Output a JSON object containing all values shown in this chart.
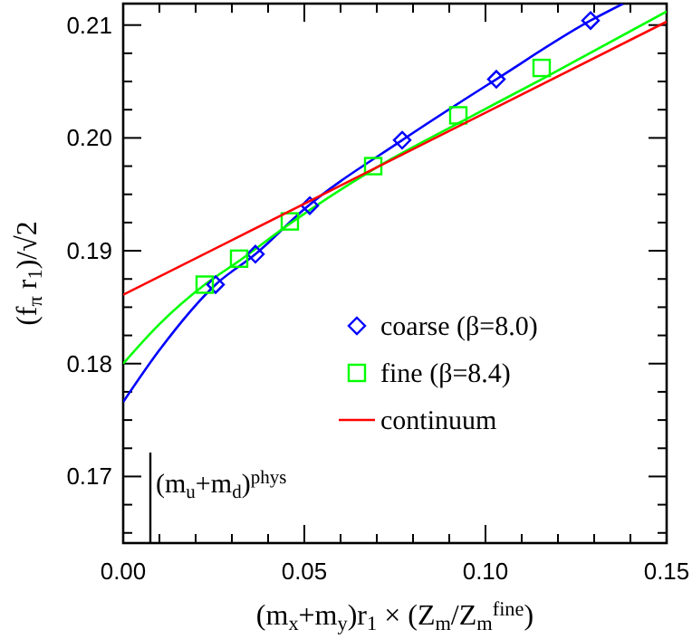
{
  "chart_data": {
    "type": "scatter",
    "xlabel": "(m$_{x}$+m$_{y}$)r$_{1}$ × (Z$_{m}$/Z$_{m}$$^{fine}$)",
    "ylabel": "(f$_{π}$ r$_{1}$)/√2",
    "xlim": [
      0,
      0.15
    ],
    "ylim": [
      0.1641,
      0.2119
    ],
    "xticks": [
      {
        "value": 0,
        "label": "0.00"
      },
      {
        "value": 0.01,
        "label": null
      },
      {
        "value": 0.02,
        "label": null
      },
      {
        "value": 0.03,
        "label": null
      },
      {
        "value": 0.04,
        "label": null
      },
      {
        "value": 0.05,
        "label": "0.05"
      },
      {
        "value": 0.06,
        "label": null
      },
      {
        "value": 0.07,
        "label": null
      },
      {
        "value": 0.08,
        "label": null
      },
      {
        "value": 0.09,
        "label": null
      },
      {
        "value": 0.1,
        "label": "0.10"
      },
      {
        "value": 0.11,
        "label": null
      },
      {
        "value": 0.12,
        "label": null
      },
      {
        "value": 0.13,
        "label": null
      },
      {
        "value": 0.14,
        "label": null
      },
      {
        "value": 0.15,
        "label": "0.15"
      }
    ],
    "yticks": [
      {
        "value": 0.165,
        "label": null
      },
      {
        "value": 0.1675,
        "label": null
      },
      {
        "value": 0.17,
        "label": "0.17"
      },
      {
        "value": 0.1725,
        "label": null
      },
      {
        "value": 0.175,
        "label": null
      },
      {
        "value": 0.1775,
        "label": null
      },
      {
        "value": 0.18,
        "label": "0.18"
      },
      {
        "value": 0.1825,
        "label": null
      },
      {
        "value": 0.185,
        "label": null
      },
      {
        "value": 0.1875,
        "label": null
      },
      {
        "value": 0.19,
        "label": "0.19"
      },
      {
        "value": 0.1925,
        "label": null
      },
      {
        "value": 0.195,
        "label": null
      },
      {
        "value": 0.1975,
        "label": null
      },
      {
        "value": 0.2,
        "label": "0.20"
      },
      {
        "value": 0.2025,
        "label": null
      },
      {
        "value": 0.205,
        "label": null
      },
      {
        "value": 0.2075,
        "label": null
      },
      {
        "value": 0.21,
        "label": "0.21"
      }
    ],
    "legend": "bottom right",
    "ref_lines": [
      {
        "axis": "x",
        "value": 0.0075,
        "label": "(m$_{u}$+m$_{d}$)$^{phys}$",
        "color": "#000000"
      }
    ],
    "series": [
      {
        "type": "line",
        "color": "#0000ff",
        "x": [
          0,
          0.01,
          0.0255,
          0.0365,
          0.05,
          0.077,
          0.103,
          0.129,
          0.138
        ],
        "values": [
          0.1766,
          0.1812,
          0.187,
          0.1897,
          0.1937,
          0.1998,
          0.2052,
          0.2104,
          0.2119
        ]
      },
      {
        "type": "line",
        "color": "#00ff00",
        "x": [
          0,
          0.01,
          0.0225,
          0.032,
          0.046,
          0.069,
          0.0925,
          0.1155,
          0.15
        ],
        "values": [
          0.18,
          0.1835,
          0.187,
          0.1891,
          0.1924,
          0.1972,
          0.2013,
          0.2052,
          0.2112
        ]
      },
      {
        "name": "coarse (β=8.0)",
        "color": "#0000ff",
        "marker": "diamond",
        "x": [
          0.0255,
          0.0365,
          0.0515,
          0.077,
          0.103,
          0.129
        ],
        "values": [
          0.187,
          0.1897,
          0.194,
          0.1998,
          0.2052,
          0.2104
        ]
      },
      {
        "name": "fine (β=8.4)",
        "color": "#00ff00",
        "marker": "square",
        "x": [
          0.0225,
          0.032,
          0.046,
          0.069,
          0.0925,
          0.1155
        ],
        "values": [
          0.187,
          0.1893,
          0.1926,
          0.1975,
          0.202,
          0.2062
        ]
      },
      {
        "type": "line",
        "name": "continuum",
        "color": "#ff0000",
        "x": [
          0,
          0.15
        ],
        "values": [
          0.1861,
          0.2103
        ]
      }
    ]
  }
}
